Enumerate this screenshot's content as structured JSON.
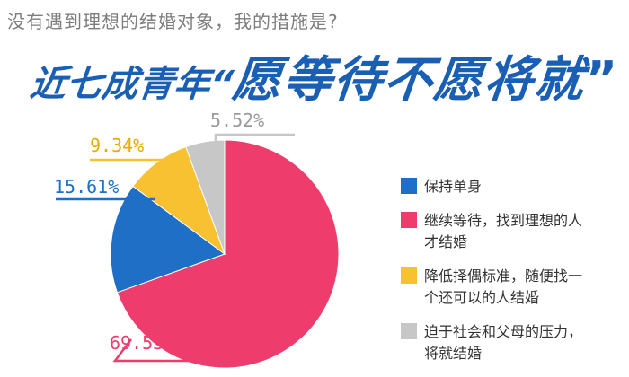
{
  "subtitle": "没有遇到理想的结婚对象，我的措施是?",
  "headline": {
    "part1": "近七成青年“",
    "part2": "愿等待不愿将就",
    "part3": "”"
  },
  "chart_data": {
    "type": "pie",
    "title": "",
    "slices": [
      {
        "name": "继续等待，找到理想的人\n才结婚",
        "value": 69.53,
        "label": "69.53%",
        "color": "#ee3c6d"
      },
      {
        "name": "保持单身",
        "value": 15.61,
        "label": "15.61%",
        "color": "#1f6fc6"
      },
      {
        "name": "降低择偶标准，随便找一\n个还可以的人结婚",
        "value": 9.34,
        "label": "9.34%",
        "color": "#f7c132"
      },
      {
        "name": "迫于社会和父母的压力，\n将就结婚",
        "value": 5.52,
        "label": "5.52%",
        "color": "#c7c7c7"
      }
    ],
    "legend_position": "right",
    "legend_order": [
      1,
      0,
      2,
      3
    ]
  }
}
